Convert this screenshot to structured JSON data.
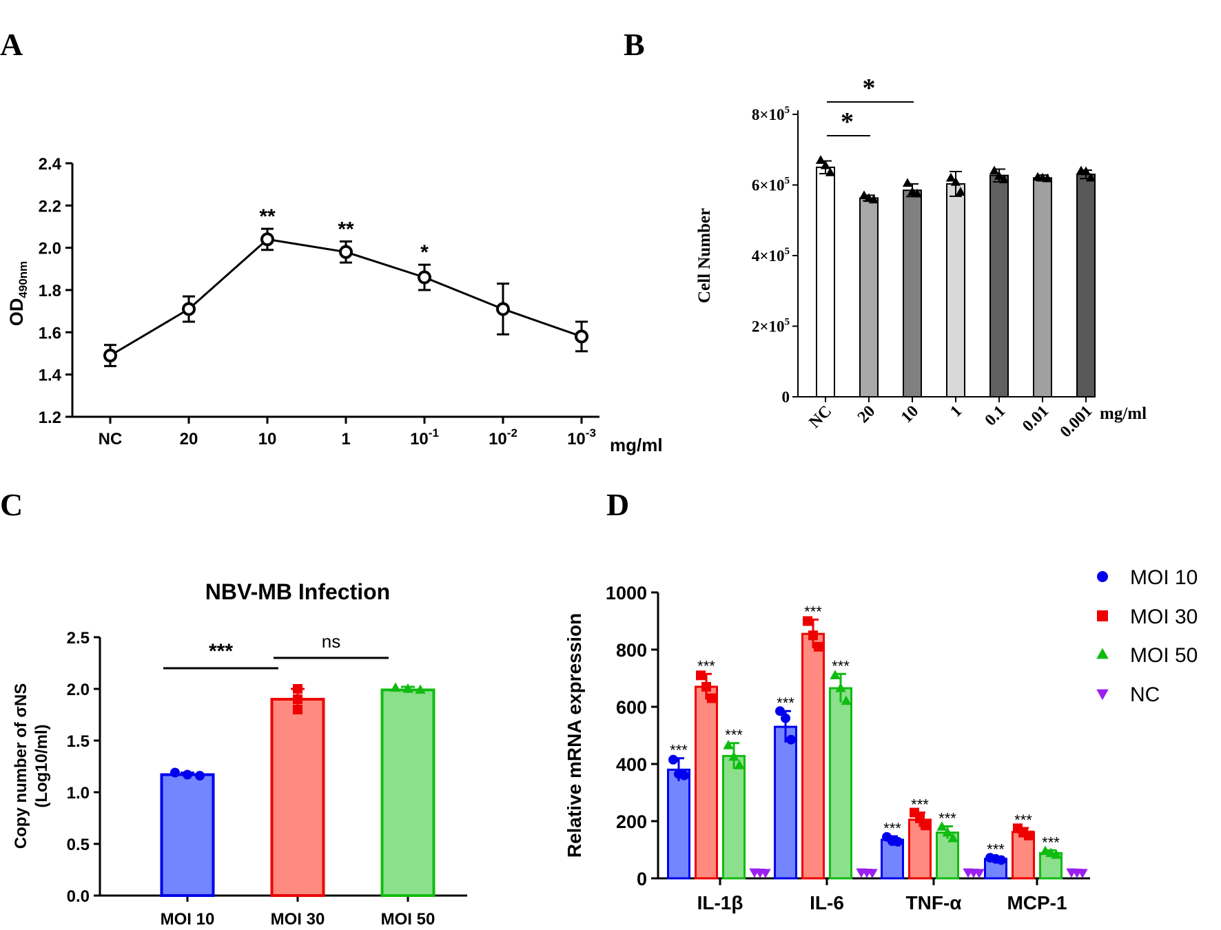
{
  "panels": {
    "a": "A",
    "b": "B",
    "c": "C",
    "d": "D"
  },
  "chart_data": [
    {
      "id": "A",
      "type": "line",
      "ylabel_main": "OD",
      "ylabel_sub": "490nm",
      "xunit": "mg/ml",
      "categories": [
        {
          "base": "NC",
          "exp": ""
        },
        {
          "base": "20",
          "exp": ""
        },
        {
          "base": "10",
          "exp": ""
        },
        {
          "base": "1",
          "exp": ""
        },
        {
          "base": "10",
          "exp": "-1"
        },
        {
          "base": "10",
          "exp": "-2"
        },
        {
          "base": "10",
          "exp": "-3"
        }
      ],
      "values": [
        1.49,
        1.71,
        2.04,
        1.98,
        1.86,
        1.71,
        1.58
      ],
      "errors": [
        0.05,
        0.06,
        0.05,
        0.05,
        0.06,
        0.12,
        0.07
      ],
      "significance": [
        "",
        "",
        "**",
        "**",
        "*",
        "",
        ""
      ],
      "ylim": [
        1.2,
        2.4
      ],
      "yticks": [
        "1.2",
        "1.4",
        "1.6",
        "1.8",
        "2.0",
        "2.2",
        "2.4"
      ],
      "color": "#000000"
    },
    {
      "id": "B",
      "type": "bar",
      "ylabel": "Cell Number",
      "xunit": "mg/ml",
      "categories": [
        "NC",
        "20",
        "10",
        "1",
        "0.1",
        "0.01",
        "0.001"
      ],
      "values": [
        650000,
        563000,
        585000,
        603000,
        627000,
        620000,
        630000
      ],
      "errors": [
        18000,
        8000,
        18000,
        35000,
        18000,
        8000,
        12000
      ],
      "points": [
        [
          670000,
          655000,
          635000
        ],
        [
          570000,
          562000,
          558000
        ],
        [
          605000,
          580000,
          575000
        ],
        [
          620000,
          608000,
          580000
        ],
        [
          640000,
          625000,
          615000
        ],
        [
          622000,
          620000,
          618000
        ],
        [
          640000,
          638000,
          620000
        ]
      ],
      "bar_colors": [
        "#ffffff",
        "#a9a9a9",
        "#808080",
        "#d9d9d9",
        "#606060",
        "#a0a0a0",
        "#595959"
      ],
      "ylim": [
        0,
        800000
      ],
      "yticks": [
        {
          "value": 0,
          "base": "0",
          "exp": ""
        },
        {
          "value": 200000,
          "base": "2×10",
          "exp": "5"
        },
        {
          "value": 400000,
          "base": "4×10",
          "exp": "5"
        },
        {
          "value": 600000,
          "base": "6×10",
          "exp": "5"
        },
        {
          "value": 800000,
          "base": "8×10",
          "exp": "5"
        }
      ],
      "comparisons": [
        {
          "from": 0,
          "to": 1,
          "label": "*"
        },
        {
          "from": 0,
          "to": 2,
          "label": "*"
        }
      ]
    },
    {
      "id": "C",
      "type": "bar",
      "title": "NBV-MB Infection",
      "ylabel_line1": "Copy number of σNS",
      "ylabel_line2": "(Log10/ml)",
      "categories": [
        "MOI 10",
        "MOI 30",
        "MOI 50"
      ],
      "values": [
        1.17,
        1.9,
        1.99
      ],
      "errors": [
        0.02,
        0.1,
        0.03
      ],
      "points": [
        [
          1.19,
          1.17,
          1.16
        ],
        [
          2.0,
          1.9,
          1.8
        ],
        [
          2.01,
          2.0,
          1.99
        ]
      ],
      "colors": [
        "#0000ee",
        "#ee0000",
        "#11bb11"
      ],
      "fill_colors": [
        "#7385ff",
        "#ff8a80",
        "#8ce08c"
      ],
      "ylim": [
        0,
        2.5
      ],
      "yticks": [
        "0.0",
        "0.5",
        "1.0",
        "1.5",
        "2.0",
        "2.5"
      ],
      "comparisons": [
        {
          "from": 0,
          "to": 1,
          "label": "***"
        },
        {
          "from": 1,
          "to": 2,
          "label": "ns"
        }
      ]
    },
    {
      "id": "D",
      "type": "bar",
      "ylabel": "Relative mRNA expression",
      "categories": [
        "IL-1β",
        "IL-6",
        "TNF-α",
        "MCP-1"
      ],
      "series": [
        {
          "name": "MOI 10",
          "values": [
            380,
            530,
            135,
            68
          ],
          "errors": [
            40,
            55,
            12,
            6
          ],
          "points": [
            [
              415,
              365,
              360
            ],
            [
              585,
              560,
              485
            ],
            [
              145,
              130,
              128
            ],
            [
              72,
              68,
              64
            ]
          ],
          "stars": [
            "***",
            "***",
            "***",
            "***"
          ],
          "color": "#0000ee",
          "fill": "#7385ff",
          "marker": "circle"
        },
        {
          "name": "MOI 30",
          "values": [
            670,
            855,
            205,
            162
          ],
          "errors": [
            45,
            50,
            25,
            14
          ],
          "points": [
            [
              710,
              670,
              630
            ],
            [
              900,
              850,
              810
            ],
            [
              230,
              210,
              185
            ],
            [
              175,
              160,
              150
            ]
          ],
          "stars": [
            "***",
            "***",
            "***",
            "***"
          ],
          "color": "#ee0000",
          "fill": "#ff8a80",
          "marker": "square"
        },
        {
          "name": "MOI 50",
          "values": [
            428,
            665,
            160,
            88
          ],
          "errors": [
            45,
            50,
            22,
            10
          ],
          "points": [
            [
              465,
              425,
              395
            ],
            [
              710,
              665,
              620
            ],
            [
              180,
              160,
              140
            ],
            [
              95,
              88,
              82
            ]
          ],
          "stars": [
            "***",
            "***",
            "***",
            "***"
          ],
          "color": "#11bb11",
          "fill": "#8ce08c",
          "marker": "triangle"
        },
        {
          "name": "NC",
          "values": [
            1,
            1,
            1,
            1
          ],
          "errors": [
            0,
            0,
            0,
            0
          ],
          "points": [
            [
              2,
              1,
              0
            ],
            [
              2,
              1,
              0
            ],
            [
              2,
              1,
              0
            ],
            [
              2,
              1,
              0
            ]
          ],
          "stars": [
            "",
            "",
            "",
            ""
          ],
          "color": "#9b1ff0",
          "fill": "#9b1ff0",
          "marker": "triangle-down"
        }
      ],
      "ylim": [
        0,
        1000
      ],
      "yticks": [
        "0",
        "200",
        "400",
        "600",
        "800",
        "1000"
      ],
      "legend": "right"
    }
  ]
}
